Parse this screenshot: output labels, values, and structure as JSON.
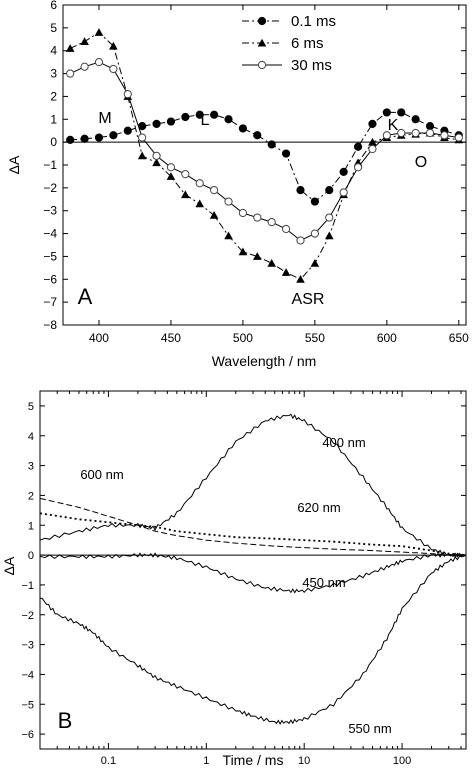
{
  "chart_data": [
    {
      "type": "line",
      "panel_label": "A",
      "xlabel": "Wavelength / nm",
      "ylabel": "ΔA",
      "xlim": [
        375,
        655
      ],
      "ylim": [
        -8,
        6
      ],
      "xticks": [
        400,
        450,
        500,
        550,
        600,
        650
      ],
      "yticks": [
        -8,
        -7,
        -6,
        -5,
        -4,
        -3,
        -2,
        -1,
        0,
        1,
        2,
        3,
        4,
        5,
        6
      ],
      "legend_position": "top-right",
      "annotations": [
        "M",
        "L",
        "K",
        "O",
        "ASR"
      ],
      "series": [
        {
          "name": "0.1 ms",
          "marker": "filled-circle",
          "line": "dash-dot",
          "x": [
            380,
            390,
            400,
            410,
            420,
            430,
            440,
            450,
            460,
            470,
            480,
            490,
            500,
            510,
            520,
            530,
            540,
            550,
            560,
            570,
            580,
            590,
            600,
            610,
            620,
            630,
            640,
            650
          ],
          "y": [
            0.1,
            0.15,
            0.2,
            0.3,
            0.5,
            0.7,
            0.8,
            0.9,
            1.1,
            1.2,
            1.2,
            1.0,
            0.6,
            0.3,
            -0.1,
            -0.5,
            -2.1,
            -2.6,
            -2.1,
            -1.3,
            -0.2,
            0.8,
            1.3,
            1.3,
            1.0,
            0.7,
            0.5,
            0.3
          ]
        },
        {
          "name": "6 ms",
          "marker": "filled-triangle",
          "line": "dash-dot",
          "x": [
            380,
            390,
            400,
            410,
            420,
            430,
            440,
            450,
            460,
            470,
            480,
            490,
            500,
            510,
            520,
            530,
            540,
            550,
            560,
            570,
            580,
            590,
            600,
            610,
            620,
            630,
            640,
            650
          ],
          "y": [
            4.1,
            4.4,
            4.8,
            4.2,
            2.0,
            -0.6,
            -0.9,
            -1.5,
            -2.3,
            -2.7,
            -3.2,
            -4.1,
            -4.8,
            -5.0,
            -5.3,
            -5.7,
            -6.0,
            -5.3,
            -4.1,
            -2.3,
            -0.9,
            0.0,
            0.2,
            0.3,
            0.35,
            0.4,
            0.2,
            0.1
          ]
        },
        {
          "name": "30 ms",
          "marker": "open-circle",
          "line": "solid",
          "x": [
            380,
            390,
            400,
            410,
            420,
            430,
            440,
            450,
            460,
            470,
            480,
            490,
            500,
            510,
            520,
            530,
            540,
            550,
            560,
            570,
            580,
            590,
            600,
            610,
            620,
            630,
            640,
            650
          ],
          "y": [
            3.0,
            3.3,
            3.5,
            3.2,
            2.1,
            0.2,
            -0.6,
            -1.1,
            -1.4,
            -1.8,
            -2.1,
            -2.6,
            -3.1,
            -3.3,
            -3.5,
            -3.8,
            -4.3,
            -4.0,
            -3.3,
            -2.2,
            -1.1,
            -0.3,
            0.3,
            0.4,
            0.4,
            0.4,
            0.3,
            0.2
          ]
        }
      ]
    },
    {
      "type": "line",
      "panel_label": "B",
      "xlabel": "Time / ms",
      "ylabel": "ΔA",
      "xscale": "log",
      "xlim": [
        0.02,
        450
      ],
      "ylim": [
        -6.5,
        5.5
      ],
      "xticks": [
        0.1,
        1,
        10,
        100
      ],
      "xtick_labels": [
        "0.1",
        "1",
        "10",
        "100"
      ],
      "yticks": [
        -6,
        -5,
        -4,
        -3,
        -2,
        -1,
        0,
        1,
        2,
        3,
        4,
        5
      ],
      "annotations": [
        "400 nm",
        "600 nm",
        "620 nm",
        "450 nm",
        "550 nm"
      ],
      "series": [
        {
          "line": "solid",
          "label_near": "400 nm",
          "x": [
            0.02,
            0.05,
            0.1,
            0.2,
            0.3,
            0.5,
            1,
            2,
            4,
            7,
            10,
            20,
            40,
            70,
            100,
            200,
            300,
            450
          ],
          "y": [
            0.5,
            0.8,
            1.0,
            1.0,
            0.9,
            1.4,
            2.6,
            3.8,
            4.5,
            4.7,
            4.5,
            3.8,
            2.6,
            1.6,
            0.9,
            0.2,
            0.0,
            0.0
          ]
        },
        {
          "line": "dashed",
          "label_near": "600 nm",
          "x": [
            0.02,
            0.05,
            0.1,
            0.2,
            0.3,
            0.5,
            1,
            2,
            5,
            10,
            20,
            50,
            100,
            200,
            300,
            450
          ],
          "y": [
            1.9,
            1.6,
            1.3,
            1.0,
            0.8,
            0.65,
            0.5,
            0.4,
            0.3,
            0.25,
            0.2,
            0.15,
            0.1,
            0.05,
            0.0,
            0.0
          ]
        },
        {
          "line": "dotted",
          "label_near": "620 nm",
          "x": [
            0.02,
            0.05,
            0.1,
            0.2,
            0.3,
            0.5,
            1,
            2,
            5,
            10,
            20,
            50,
            100,
            200,
            300,
            450
          ],
          "y": [
            1.4,
            1.2,
            1.1,
            1.0,
            0.95,
            0.8,
            0.7,
            0.6,
            0.55,
            0.5,
            0.45,
            0.35,
            0.3,
            0.15,
            0.05,
            0.0
          ]
        },
        {
          "line": "solid",
          "label_near": "450 nm",
          "x": [
            0.02,
            0.05,
            0.1,
            0.2,
            0.3,
            0.5,
            1,
            2,
            4,
            7,
            10,
            20,
            40,
            70,
            100,
            200,
            300,
            450
          ],
          "y": [
            -0.05,
            -0.05,
            -0.05,
            0.0,
            0.0,
            -0.1,
            -0.4,
            -0.8,
            -1.1,
            -1.2,
            -1.2,
            -1.0,
            -0.7,
            -0.4,
            -0.2,
            0.0,
            0.0,
            0.0
          ]
        },
        {
          "line": "solid",
          "label_near": "550 nm",
          "x": [
            0.02,
            0.03,
            0.05,
            0.07,
            0.1,
            0.2,
            0.3,
            0.5,
            1,
            2,
            3,
            5,
            7,
            10,
            20,
            40,
            70,
            100,
            200,
            300,
            450
          ],
          "y": [
            -1.4,
            -2.0,
            -2.3,
            -2.6,
            -3.1,
            -3.7,
            -4.1,
            -4.4,
            -4.8,
            -5.2,
            -5.4,
            -5.6,
            -5.6,
            -5.5,
            -5.0,
            -4.0,
            -2.8,
            -1.8,
            -0.6,
            -0.2,
            0.0
          ]
        }
      ]
    }
  ]
}
